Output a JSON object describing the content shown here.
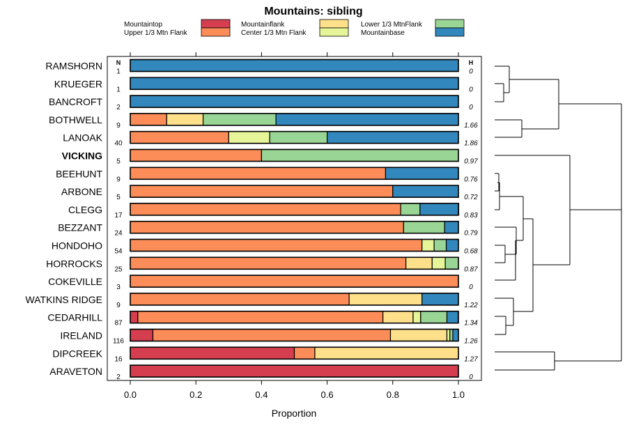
{
  "chart_data": {
    "type": "bar",
    "orientation": "horizontal-stacked",
    "title": "Mountains: sibling",
    "xlabel": "Proportion",
    "xlim": [
      0,
      1
    ],
    "xticks": [
      "0.0",
      "0.2",
      "0.4",
      "0.6",
      "0.8",
      "1.0"
    ],
    "n_header": "N",
    "h_header": "H",
    "legend": [
      {
        "name": "Mountaintop",
        "color": "#d53e4f"
      },
      {
        "name": "Upper 1/3 Mtn Flank",
        "color": "#fc8d59"
      },
      {
        "name": "Mountainflank",
        "color": "#fee08b"
      },
      {
        "name": "Center 1/3 Mtn Flank",
        "color": "#e6f598"
      },
      {
        "name": "Lower 1/3 MtnFlank",
        "color": "#99d594"
      },
      {
        "name": "Mountainbase",
        "color": "#3288bd"
      }
    ],
    "categories": [
      "RAMSHORN",
      "KRUEGER",
      "BANCROFT",
      "BOTHWELL",
      "LANOAK",
      "VICKING",
      "BEEHUNT",
      "ARBONE",
      "CLEGG",
      "BEZZANT",
      "HONDOHO",
      "HORROCKS",
      "COKEVILLE",
      "WATKINS RIDGE",
      "CEDARHILL",
      "IRELAND",
      "DIPCREEK",
      "ARAVETON"
    ],
    "bold_categories": [
      "VICKING"
    ],
    "n": [
      "1",
      "1",
      "2",
      "9",
      "40",
      "5",
      "9",
      "5",
      "17",
      "24",
      "54",
      "25",
      "3",
      "9",
      "87",
      "116",
      "16",
      "2"
    ],
    "h": [
      "0",
      "0",
      "0",
      "1.66",
      "1.86",
      "0.97",
      "0.76",
      "0.72",
      "0.83",
      "0.79",
      "0.68",
      "0.87",
      "0",
      "1.22",
      "1.34",
      "1.26",
      "1.27",
      "0"
    ],
    "series": [
      {
        "name": "Mountaintop",
        "values": [
          0,
          0,
          0,
          0,
          0,
          0,
          0,
          0,
          0,
          0,
          0,
          0,
          0,
          0,
          0.023,
          0.069,
          0.5,
          1
        ]
      },
      {
        "name": "Upper 1/3 Mtn Flank",
        "values": [
          0,
          0,
          0,
          0.111,
          0.3,
          0.4,
          0.778,
          0.8,
          0.824,
          0.833,
          0.889,
          0.84,
          1,
          0.667,
          0.747,
          0.724,
          0.0625,
          0
        ]
      },
      {
        "name": "Mountainflank",
        "values": [
          0,
          0,
          0,
          0.111,
          0,
          0,
          0,
          0,
          0,
          0,
          0,
          0.08,
          0,
          0.222,
          0.092,
          0.172,
          0.4375,
          0
        ]
      },
      {
        "name": "Center 1/3 Mtn Flank",
        "values": [
          0,
          0,
          0,
          0,
          0.125,
          0,
          0,
          0,
          0,
          0,
          0.037,
          0.04,
          0,
          0,
          0.023,
          0.009,
          0,
          0
        ]
      },
      {
        "name": "Lower 1/3 MtnFlank",
        "values": [
          0,
          0,
          0,
          0.222,
          0.175,
          0.6,
          0,
          0,
          0.059,
          0.125,
          0.037,
          0.04,
          0,
          0,
          0.08,
          0.009,
          0,
          0
        ]
      },
      {
        "name": "Mountainbase",
        "values": [
          1,
          1,
          1,
          0.556,
          0.4,
          0,
          0.222,
          0.2,
          0.118,
          0.042,
          0.037,
          0,
          0,
          0.111,
          0.034,
          0.017,
          0,
          0
        ]
      }
    ],
    "dendrogram_side": "right"
  }
}
